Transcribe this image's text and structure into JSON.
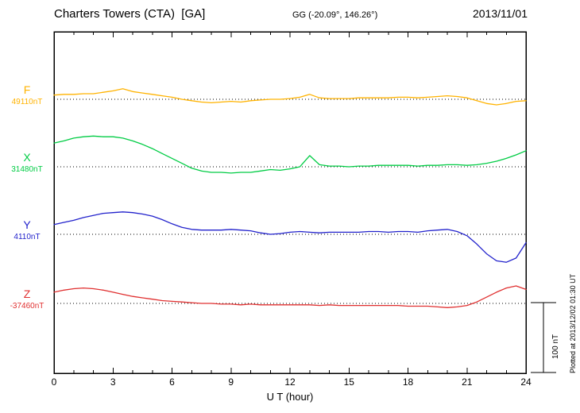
{
  "header": {
    "station": "Charters Towers (CTA)  [GA]",
    "coords": "GG (-20.09°, 146.26°)",
    "date": "2013/11/01"
  },
  "chart_data": {
    "type": "line",
    "title": "Charters Towers (CTA) magnetogram 2013/11/01",
    "xlabel": "U T (hour)",
    "x_range": [
      0,
      24
    ],
    "x_ticks": [
      "0",
      "3",
      "6",
      "9",
      "12",
      "15",
      "18",
      "21",
      "24"
    ],
    "x_step_hours": 0.5,
    "grid": "dotted horizontal baseline per component",
    "legend_position": "left margin, one colored label per trace",
    "scale_bar": {
      "label": "100 nT",
      "nT": 100
    },
    "series": [
      {
        "name": "F",
        "baseline_label": "49110nT",
        "baseline_nT": 49110,
        "color": "#FFB300",
        "offsets_nT": [
          6,
          7,
          7,
          8,
          8,
          10,
          12,
          15,
          11,
          9,
          7,
          5,
          3,
          0,
          -2,
          -4,
          -5,
          -4,
          -3,
          -4,
          -2,
          -1,
          0,
          0,
          1,
          3,
          7,
          2,
          1,
          1,
          1,
          2,
          2,
          2,
          2,
          3,
          3,
          2,
          3,
          4,
          5,
          4,
          2,
          -2,
          -6,
          -8,
          -6,
          -3,
          -2
        ]
      },
      {
        "name": "X",
        "baseline_label": "31480nT",
        "baseline_nT": 31480,
        "color": "#00CC44",
        "offsets_nT": [
          34,
          37,
          41,
          43,
          44,
          43,
          43,
          41,
          37,
          32,
          26,
          19,
          12,
          5,
          -2,
          -6,
          -8,
          -8,
          -9,
          -8,
          -8,
          -6,
          -4,
          -5,
          -3,
          0,
          16,
          3,
          1,
          1,
          0,
          1,
          1,
          2,
          2,
          2,
          2,
          1,
          2,
          2,
          3,
          3,
          2,
          3,
          5,
          8,
          12,
          17,
          23
        ]
      },
      {
        "name": "Y",
        "baseline_label": "4110nT",
        "baseline_nT": 4110,
        "color": "#2222CC",
        "offsets_nT": [
          14,
          17,
          20,
          24,
          27,
          30,
          31,
          32,
          31,
          29,
          26,
          21,
          15,
          10,
          7,
          6,
          6,
          6,
          7,
          6,
          5,
          2,
          0,
          1,
          3,
          4,
          3,
          2,
          3,
          3,
          3,
          3,
          4,
          4,
          3,
          4,
          4,
          3,
          5,
          6,
          7,
          4,
          -2,
          -14,
          -28,
          -38,
          -40,
          -34,
          -12
        ]
      },
      {
        "name": "Z",
        "baseline_label": "-37460nT",
        "baseline_nT": -37460,
        "color": "#E03030",
        "offsets_nT": [
          16,
          19,
          21,
          22,
          21,
          19,
          16,
          13,
          10,
          8,
          6,
          4,
          3,
          2,
          1,
          0,
          0,
          -1,
          -1,
          -2,
          -1,
          -2,
          -2,
          -2,
          -2,
          -2,
          -2,
          -3,
          -2,
          -3,
          -3,
          -3,
          -3,
          -3,
          -3,
          -3,
          -4,
          -4,
          -4,
          -5,
          -6,
          -5,
          -3,
          2,
          9,
          16,
          22,
          25,
          20
        ]
      }
    ]
  },
  "footer": {
    "plotted_at": "Plotted at 2013/12/02 01:30 UT"
  }
}
